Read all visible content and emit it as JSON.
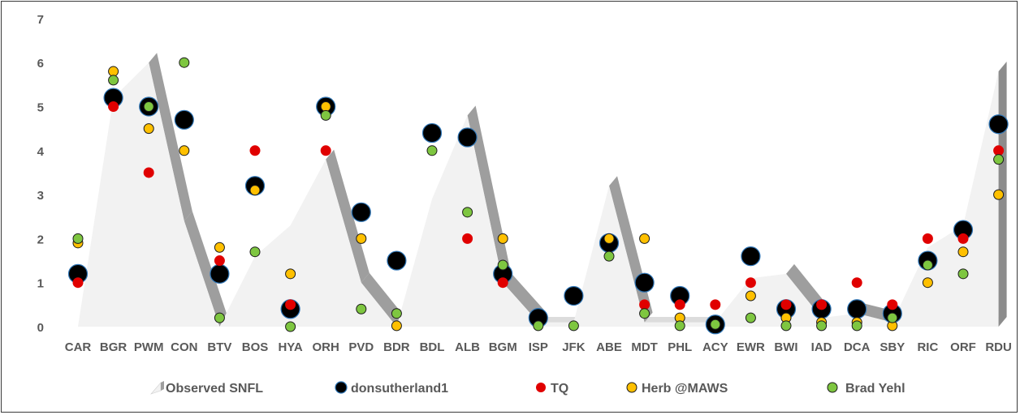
{
  "chart_data": {
    "type": "scatter",
    "title": "",
    "xlabel": "",
    "ylabel": "",
    "ylim": [
      0,
      7
    ],
    "yticks": [
      "0",
      "1",
      "2",
      "3",
      "4",
      "5",
      "6",
      "7"
    ],
    "grid": false,
    "legend_position": "bottom",
    "categories": [
      "CAR",
      "BGR",
      "PWM",
      "CON",
      "BTV",
      "BOS",
      "HYA",
      "ORH",
      "PVD",
      "BDR",
      "BDL",
      "ALB",
      "BGM",
      "ISP",
      "JFK",
      "ABE",
      "MDT",
      "PHL",
      "ACY",
      "EWR",
      "BWI",
      "IAD",
      "DCA",
      "SBY",
      "RIC",
      "ORF",
      "RDU"
    ],
    "series": [
      {
        "name": "Observed SNFL",
        "kind": "area-3d",
        "color": "#f2f2f2",
        "values": [
          0,
          5.2,
          6.0,
          2.4,
          0.0,
          1.6,
          2.3,
          3.8,
          1.0,
          0.0,
          2.9,
          4.8,
          1.0,
          0.1,
          0.1,
          3.2,
          0.1,
          0.1,
          0.1,
          1.1,
          1.2,
          0.2,
          0.3,
          0.1,
          1.8,
          2.3,
          5.8
        ]
      },
      {
        "name": "donsutherland1",
        "kind": "marker-large",
        "color": "#000000",
        "values": [
          1.2,
          5.2,
          5.0,
          4.7,
          1.2,
          3.2,
          0.4,
          5.0,
          2.6,
          1.5,
          4.4,
          4.3,
          1.2,
          0.2,
          0.7,
          1.9,
          1.0,
          0.7,
          0.05,
          1.6,
          0.4,
          0.4,
          0.4,
          0.3,
          1.5,
          2.2,
          4.6
        ]
      },
      {
        "name": "TQ",
        "kind": "marker",
        "color": "#e00000",
        "values": [
          1.0,
          5.0,
          3.5,
          null,
          1.5,
          4.0,
          0.5,
          4.0,
          null,
          null,
          null,
          2.0,
          1.0,
          null,
          null,
          null,
          0.5,
          0.5,
          0.5,
          1.0,
          0.5,
          0.5,
          1.0,
          0.5,
          2.0,
          2.0,
          4.0
        ]
      },
      {
        "name": "Herb @MAWS",
        "kind": "marker",
        "color": "#ffc000",
        "values": [
          1.9,
          5.8,
          4.5,
          4.0,
          1.8,
          3.1,
          1.2,
          5.0,
          2.0,
          0.02,
          null,
          null,
          2.0,
          null,
          null,
          2.0,
          2.0,
          0.2,
          0.05,
          0.7,
          0.2,
          0.1,
          0.1,
          0.02,
          1.0,
          1.7,
          3.0
        ]
      },
      {
        "name": "Brad Yehl",
        "kind": "marker",
        "color": "#7ec640",
        "values": [
          2.0,
          5.6,
          5.0,
          6.0,
          0.2,
          1.7,
          0.0,
          4.8,
          0.4,
          0.3,
          4.0,
          2.6,
          1.4,
          0.02,
          0.02,
          1.6,
          0.3,
          0.02,
          0.05,
          0.2,
          0.02,
          0.02,
          0.02,
          0.2,
          1.4,
          1.2,
          3.8
        ]
      }
    ]
  }
}
